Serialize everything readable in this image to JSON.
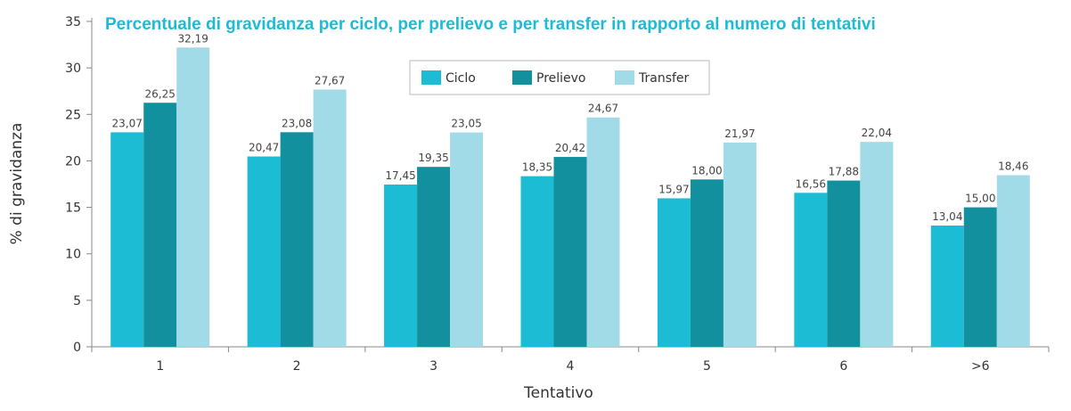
{
  "chart_data": {
    "type": "bar",
    "title": "Percentuale di gravidanza per ciclo, per prelievo e per transfer in rapporto al numero di tentativi",
    "xlabel": "Tentativo",
    "ylabel": "% di gravidanza",
    "ylim": [
      0,
      35
    ],
    "yticks": [
      "0",
      "5",
      "10",
      "15",
      "20",
      "25",
      "30",
      "35"
    ],
    "categories": [
      "1",
      "2",
      "3",
      "4",
      "5",
      "6",
      ">6"
    ],
    "series": [
      {
        "name": "Ciclo",
        "color": "#1bbcd4",
        "values": [
          23.07,
          20.47,
          17.45,
          18.35,
          15.97,
          16.56,
          13.04
        ],
        "labels": [
          "23,07",
          "20,47",
          "17,45",
          "18,35",
          "15,97",
          "16,56",
          "13,04"
        ]
      },
      {
        "name": "Prelievo",
        "color": "#12909d",
        "values": [
          26.25,
          23.08,
          19.35,
          20.42,
          18.0,
          17.88,
          15.0
        ],
        "labels": [
          "26,25",
          "23,08",
          "19,35",
          "20,42",
          "18,00",
          "17,88",
          "15,00"
        ]
      },
      {
        "name": "Transfer",
        "color": "#a2dbe8",
        "values": [
          32.19,
          27.67,
          23.05,
          24.67,
          21.97,
          22.04,
          18.46
        ],
        "labels": [
          "32,19",
          "27,67",
          "23,05",
          "24,67",
          "21,97",
          "22,04",
          "18,46"
        ]
      }
    ],
    "legend_position": "top-center",
    "grid": false,
    "title_color": "#1bbcd4"
  }
}
